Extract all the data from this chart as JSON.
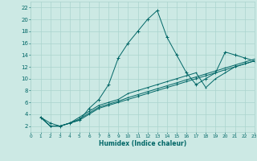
{
  "xlabel": "Humidex (Indice chaleur)",
  "background_color": "#cce9e4",
  "grid_color": "#aad4ce",
  "line_color": "#006666",
  "xlim": [
    0,
    23
  ],
  "ylim": [
    1,
    23
  ],
  "xticks": [
    0,
    1,
    2,
    3,
    4,
    5,
    6,
    7,
    8,
    9,
    10,
    11,
    12,
    13,
    14,
    15,
    16,
    17,
    18,
    19,
    20,
    21,
    22,
    23
  ],
  "yticks": [
    2,
    4,
    6,
    8,
    10,
    12,
    14,
    16,
    18,
    20,
    22
  ],
  "series": [
    {
      "x": [
        1,
        2,
        3,
        4,
        5,
        6,
        7,
        8,
        9,
        10,
        11,
        12,
        13,
        14,
        15,
        16,
        17,
        18,
        19,
        20,
        21,
        22,
        23
      ],
      "y": [
        3.5,
        2.5,
        2.0,
        2.5,
        3.0,
        5.0,
        6.5,
        9.0,
        13.5,
        16.0,
        18.0,
        20.0,
        21.5,
        17.0,
        14.0,
        11.0,
        9.0,
        10.0,
        11.0,
        14.5,
        14.0,
        13.5,
        13.0
      ]
    },
    {
      "x": [
        1,
        2,
        3,
        4,
        5,
        6,
        7,
        8,
        9,
        10,
        11,
        12,
        13,
        14,
        15,
        16,
        17,
        18,
        19,
        20,
        21,
        22,
        23
      ],
      "y": [
        3.5,
        2.0,
        2.0,
        2.5,
        3.0,
        4.0,
        5.0,
        5.5,
        6.0,
        6.5,
        7.0,
        7.5,
        8.0,
        8.5,
        9.0,
        9.5,
        10.0,
        10.5,
        11.0,
        11.5,
        12.0,
        12.5,
        13.0
      ]
    },
    {
      "x": [
        1,
        2,
        3,
        4,
        5,
        6,
        7,
        8,
        9,
        10,
        11,
        12,
        13,
        14,
        15,
        16,
        17,
        18,
        19,
        20,
        21,
        22,
        23
      ],
      "y": [
        3.5,
        2.0,
        2.0,
        2.5,
        3.2,
        4.2,
        5.2,
        5.7,
        6.2,
        6.8,
        7.3,
        7.8,
        8.3,
        8.8,
        9.3,
        9.8,
        10.3,
        10.8,
        11.3,
        11.8,
        12.3,
        12.8,
        13.3
      ]
    },
    {
      "x": [
        1,
        2,
        3,
        4,
        5,
        6,
        7,
        8,
        9,
        10,
        11,
        12,
        13,
        14,
        15,
        16,
        17,
        18,
        19,
        20,
        21,
        22,
        23
      ],
      "y": [
        3.5,
        2.0,
        2.0,
        2.5,
        3.5,
        4.5,
        5.5,
        6.0,
        6.5,
        7.5,
        8.0,
        8.5,
        9.0,
        9.5,
        10.0,
        10.5,
        11.0,
        8.5,
        10.0,
        11.0,
        12.0,
        12.5,
        13.0
      ]
    }
  ]
}
